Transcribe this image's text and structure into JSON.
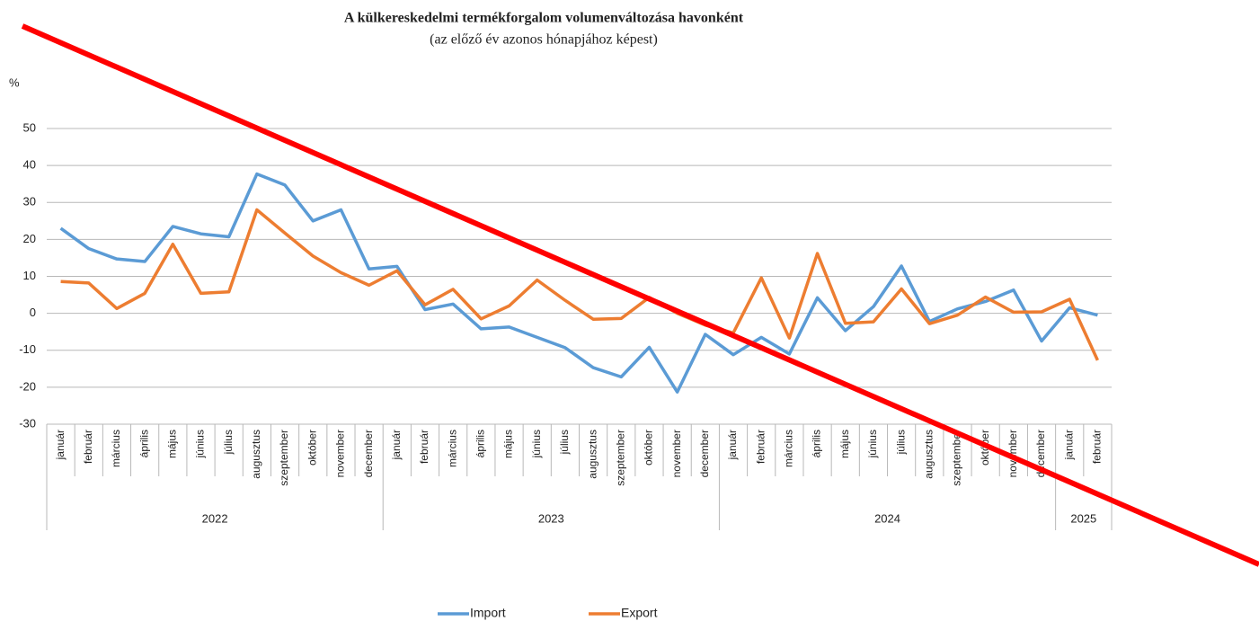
{
  "chart_data": {
    "type": "line",
    "title": "A külkereskedelmi termékforgalom volumenváltozása havonként",
    "subtitle": "(az előző év azonos hónapjához képest)",
    "y_label": "%",
    "category_groups": [
      {
        "label": "2022",
        "months": [
          "január",
          "február",
          "március",
          "április",
          "május",
          "június",
          "július",
          "augusztus",
          "szeptember",
          "október",
          "november",
          "december"
        ]
      },
      {
        "label": "2023",
        "months": [
          "január",
          "február",
          "március",
          "április",
          "május",
          "június",
          "július",
          "augusztus",
          "szeptember",
          "október",
          "november",
          "december"
        ]
      },
      {
        "label": "2024",
        "months": [
          "január",
          "február",
          "március",
          "április",
          "május",
          "június",
          "július",
          "augusztus",
          "szeptember",
          "október",
          "november",
          "december"
        ]
      },
      {
        "label": "2025",
        "months": [
          "január",
          "február"
        ]
      }
    ],
    "series": [
      {
        "name": "Import",
        "color": "#5b9bd5",
        "values": [
          23,
          17.5,
          14.7,
          14,
          23.5,
          21.5,
          20.7,
          37.7,
          34.7,
          25,
          28,
          12,
          12.7,
          1,
          2.5,
          -4.2,
          -3.7,
          -6.5,
          -9.3,
          -14.7,
          -17.2,
          -9.2,
          -21.3,
          -5.7,
          -11.2,
          -6.5,
          -11,
          4.2,
          -4.7,
          1.8,
          12.8,
          -2.2,
          1.2,
          3.2,
          6.3,
          -7.5,
          1.5,
          -0.5
        ]
      },
      {
        "name": "Export",
        "color": "#ed7d31",
        "values": [
          8.6,
          8.2,
          1.3,
          5.4,
          18.7,
          5.4,
          5.8,
          28,
          21.7,
          15.5,
          11,
          7.6,
          11.5,
          2.3,
          6.5,
          -1.5,
          2,
          9,
          3.5,
          -1.6,
          -1.4,
          4.3,
          0,
          -3.2,
          -5.3,
          9.6,
          -6.7,
          16.2,
          -2.7,
          -2.3,
          6.6,
          -2.8,
          -0.5,
          4.4,
          0.3,
          0.4,
          3.8,
          -12.7
        ]
      }
    ],
    "ylim": [
      -30,
      50
    ],
    "yticks": [
      -30,
      -20,
      -10,
      0,
      10,
      20,
      30,
      40,
      50
    ],
    "grid": true,
    "legend": "bottom"
  }
}
